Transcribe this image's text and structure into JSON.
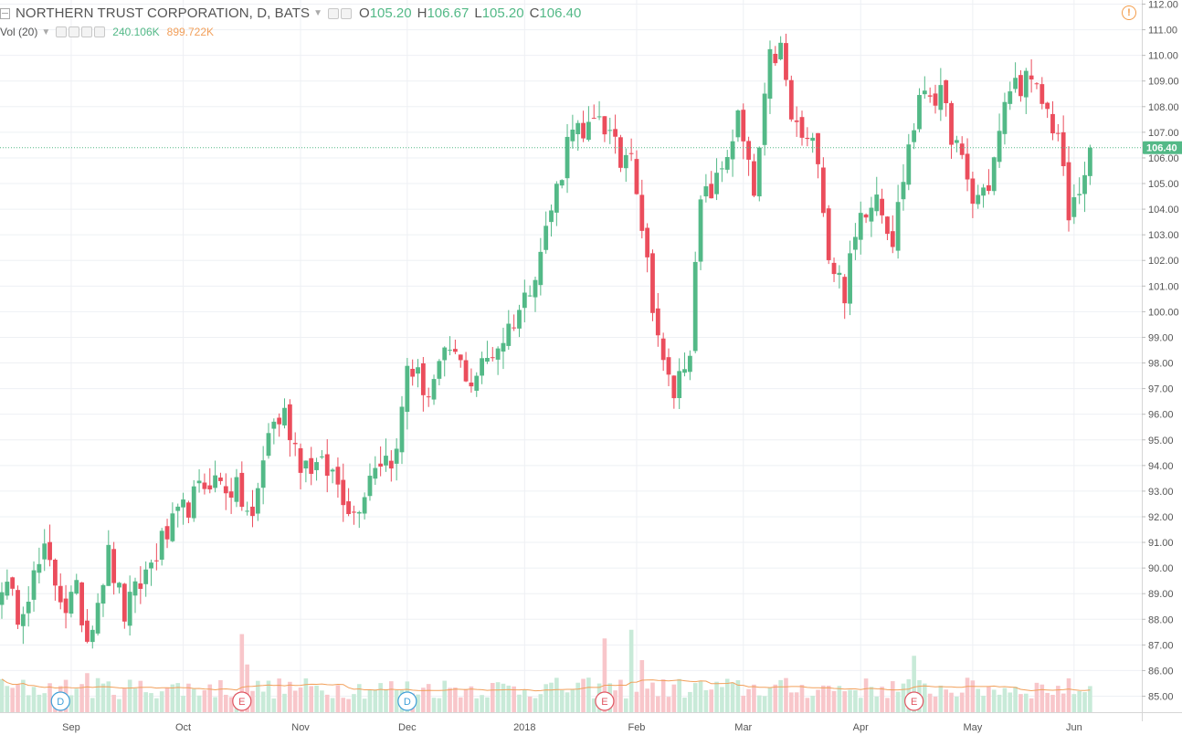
{
  "header": {
    "symbol_title": "NORTHERN TRUST CORPORATION, D, BATS",
    "o_label": "O",
    "o_value": "105.20",
    "h_label": "H",
    "h_value": "106.67",
    "l_label": "L",
    "l_value": "105.20",
    "c_label": "C",
    "c_value": "106.40",
    "alert_glyph": "!"
  },
  "volume_legend": {
    "title": "Vol (20)",
    "value": "240.106K",
    "ma_value": "899.722K"
  },
  "colors": {
    "up": "#53b987",
    "down": "#eb4d5c",
    "up_volume": "#c8ead8",
    "down_volume": "#f8c6ca",
    "volume_ma": "#f2a05b",
    "last_price_line": "#53b987",
    "grid": "#eef0f4"
  },
  "chart_data": {
    "type": "candlestick",
    "symbol": "NORTHERN TRUST CORPORATION",
    "interval": "D",
    "exchange": "BATS",
    "last_price": 106.4,
    "last_price_label": "106.40",
    "y_ticks": [
      "85.00",
      "86.00",
      "87.00",
      "88.00",
      "89.00",
      "90.00",
      "91.00",
      "92.00",
      "93.00",
      "94.00",
      "95.00",
      "96.00",
      "97.00",
      "98.00",
      "99.00",
      "100.00",
      "101.00",
      "102.00",
      "103.00",
      "104.00",
      "105.00",
      "106.00",
      "107.00",
      "108.00",
      "109.00",
      "110.00",
      "111.00",
      "112.00"
    ],
    "ylim": [
      84.5,
      112.2
    ],
    "x_ticks": [
      "Sep",
      "Oct",
      "Nov",
      "Dec",
      "2018",
      "Feb",
      "Mar",
      "Apr",
      "May",
      "Jun"
    ],
    "grid": true,
    "events": [
      {
        "label": "D",
        "kind": "dividend"
      },
      {
        "label": "E",
        "kind": "earnings"
      },
      {
        "label": "D",
        "kind": "dividend"
      },
      {
        "label": "E",
        "kind": "earnings"
      },
      {
        "label": "E",
        "kind": "earnings"
      }
    ],
    "anchors": [
      [
        0,
        89.5
      ],
      [
        3,
        88.3
      ],
      [
        8,
        90.5
      ],
      [
        12,
        88.5
      ],
      [
        14,
        89.0
      ],
      [
        16,
        87.3
      ],
      [
        20,
        90.5
      ],
      [
        23,
        88.2
      ],
      [
        30,
        91.0
      ],
      [
        34,
        92.2
      ],
      [
        39,
        93.5
      ],
      [
        44,
        93.0
      ],
      [
        47,
        91.8
      ],
      [
        50,
        95.4
      ],
      [
        53,
        96.0
      ],
      [
        56,
        94.2
      ],
      [
        62,
        93.7
      ],
      [
        66,
        92.1
      ],
      [
        70,
        94.2
      ],
      [
        74,
        94.4
      ],
      [
        76,
        98.0
      ],
      [
        80,
        96.8
      ],
      [
        84,
        98.5
      ],
      [
        88,
        97.3
      ],
      [
        94,
        99.0
      ],
      [
        98,
        100.5
      ],
      [
        101,
        102.4
      ],
      [
        105,
        105.6
      ],
      [
        107,
        107.6
      ],
      [
        109,
        106.5
      ],
      [
        112,
        107.8
      ],
      [
        116,
        105.8
      ],
      [
        118,
        106.6
      ],
      [
        121,
        101.8
      ],
      [
        124,
        97.8
      ],
      [
        126,
        96.8
      ],
      [
        129,
        98.8
      ],
      [
        131,
        104.2
      ],
      [
        134,
        105.0
      ],
      [
        138,
        107.5
      ],
      [
        141,
        104.5
      ],
      [
        144,
        109.8
      ],
      [
        146,
        110.2
      ],
      [
        148,
        107.5
      ],
      [
        151,
        106.5
      ],
      [
        153,
        106.3
      ],
      [
        155,
        102.2
      ],
      [
        158,
        100.8
      ],
      [
        161,
        103.8
      ],
      [
        164,
        104.8
      ],
      [
        167,
        102.8
      ],
      [
        170,
        106.5
      ],
      [
        173,
        108.8
      ],
      [
        176,
        108.3
      ],
      [
        179,
        106.4
      ],
      [
        182,
        104.3
      ],
      [
        185,
        105.0
      ],
      [
        189,
        108.8
      ],
      [
        192,
        109.0
      ],
      [
        195,
        108.2
      ],
      [
        198,
        106.9
      ],
      [
        200,
        103.6
      ],
      [
        202,
        104.8
      ],
      [
        204,
        106.4
      ]
    ]
  }
}
